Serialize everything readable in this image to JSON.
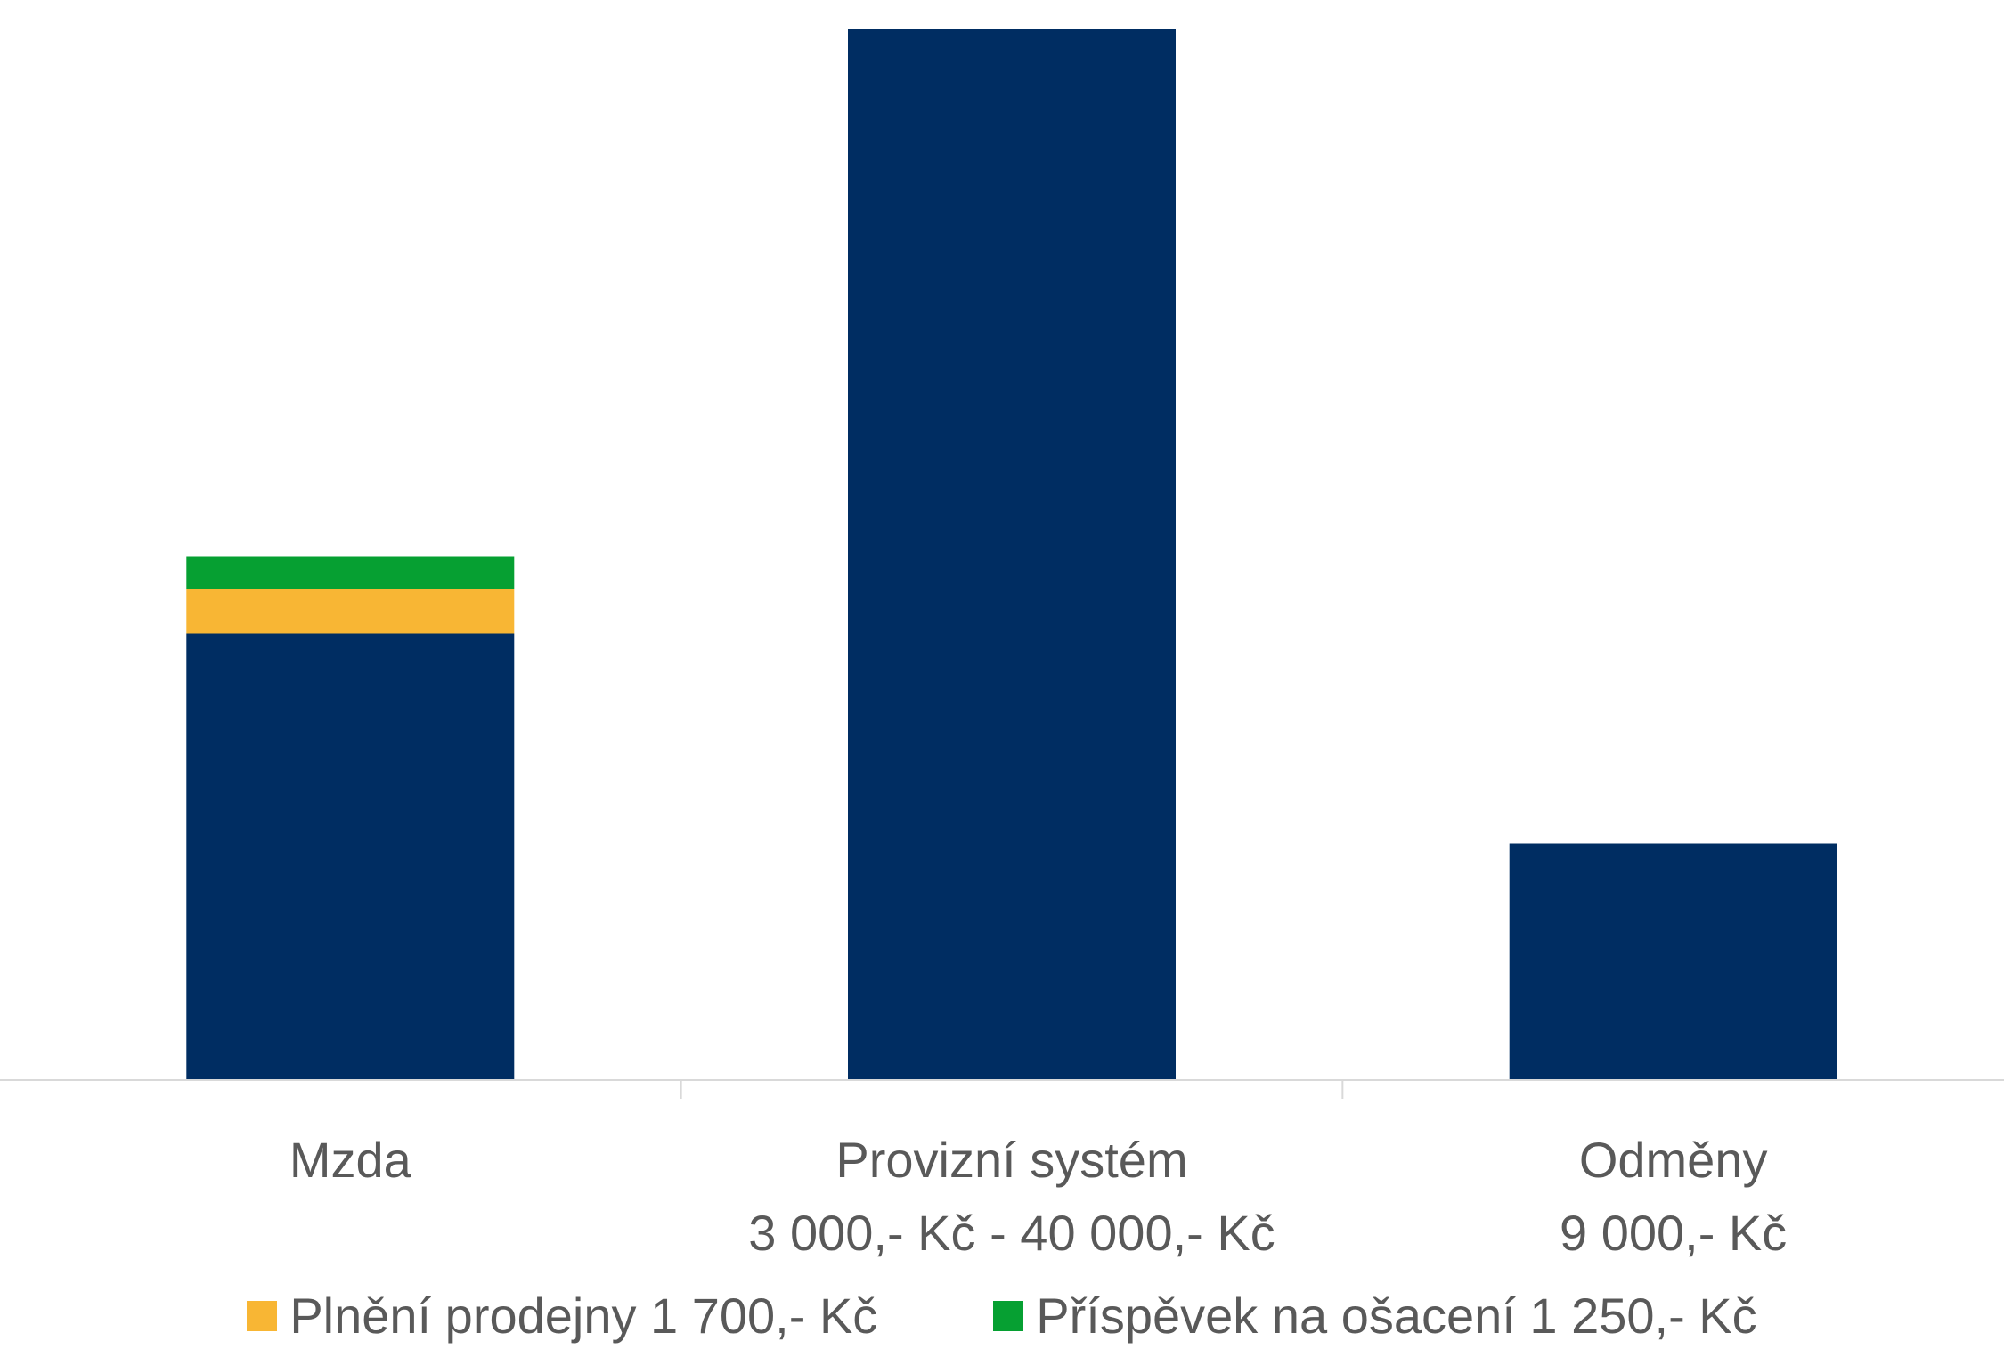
{
  "chart_data": {
    "type": "bar",
    "stacked": true,
    "categories": [
      {
        "lines": [
          "Mzda"
        ]
      },
      {
        "lines": [
          "Provizní systém",
          "3 000,- Kč - 40 000,- Kč"
        ]
      },
      {
        "lines": [
          "Odměny",
          "9 000,- Kč"
        ]
      }
    ],
    "series": [
      {
        "key": "base",
        "color": "#002D62",
        "values": [
          17000,
          40000,
          9000
        ],
        "in_legend": false
      },
      {
        "name": "Plnění prodejny 1 700,- Kč",
        "color": "#F8B634",
        "values": [
          1700,
          0,
          0
        ],
        "in_legend": true
      },
      {
        "name": "Příspěvek na ošacení 1 250,- Kč",
        "color": "#06A032",
        "values": [
          1250,
          0,
          0
        ],
        "in_legend": true
      }
    ],
    "ylim": [
      0,
      40000
    ],
    "grid": false,
    "legend_position": "bottom",
    "axis_color": "#D9D9D9",
    "label_color": "#595959"
  }
}
